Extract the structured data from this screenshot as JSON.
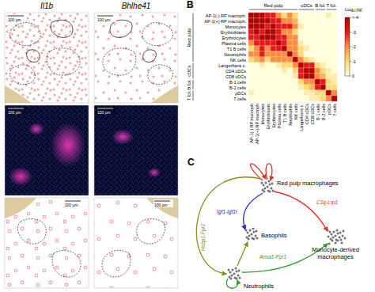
{
  "panel_A": {
    "columns": [
      {
        "gene": "Il1b",
        "scale_bars": [
          "100 μm",
          "100 μm",
          "100 μm"
        ]
      },
      {
        "gene": "Bhlhe41",
        "scale_bars": [
          "100 μm",
          "100 μm",
          "100 μm"
        ]
      }
    ]
  },
  "panel_B": {
    "letter": "B"
  },
  "chart_data": {
    "type": "heatmap",
    "categories": [
      "AP-1(-) RP macroph",
      "AP-1(+) RP macroph",
      "Monocytes",
      "Erythroblasts",
      "Erythrocytes",
      "Plasma cells",
      "T1 B cells",
      "Neutrophils",
      "NK cells",
      "Langerhans c.",
      "CD4 cDCs",
      "CD8 cDCs",
      "B-1 cells",
      "B-2 cells",
      "pDCs",
      "T cells"
    ],
    "rows": [
      "AP-1(-) RP macroph.",
      "AP-1(+) RP macroph.",
      "Monocytes",
      "Erythroblasts",
      "Erythrocytes",
      "Plasma cells",
      "T1 B cells",
      "Neutrophils",
      "NK cells",
      "Langerhans c.",
      "CD4 cDCs",
      "CD8 cDCs",
      "B-1 cells",
      "B-2 cells",
      "pDCs",
      "T cells"
    ],
    "cells": [
      [
        -4,
        -4,
        -4,
        -3,
        -3,
        -2,
        -1,
        -2,
        -1,
        0,
        0,
        0,
        0,
        0,
        -0.5,
        0
      ],
      [
        -4,
        -4,
        -4,
        -4,
        -3,
        -3,
        -2,
        -2,
        -1.5,
        0,
        0,
        0,
        0,
        0,
        0,
        0
      ],
      [
        -4,
        -4,
        -4,
        -3,
        -4,
        -3,
        -3,
        -3,
        -2,
        -0.5,
        0,
        0,
        0,
        0,
        0,
        0
      ],
      [
        -3,
        -4,
        -3,
        -4,
        -4,
        -3,
        -2,
        -2,
        -1,
        0,
        0,
        0,
        0,
        0,
        0,
        0
      ],
      [
        -3,
        -3,
        -4,
        -4,
        -4,
        -3,
        -3,
        -2,
        -2,
        0,
        0,
        0,
        0,
        0,
        0,
        0
      ],
      [
        -2,
        -3,
        -3,
        -3,
        -3,
        -4,
        -3,
        -2,
        -2,
        -0.5,
        0,
        0,
        0,
        0,
        0,
        0
      ],
      [
        -1,
        -2,
        -3,
        -2,
        -3,
        -3,
        -4,
        -2,
        -2,
        -1,
        -0.5,
        0,
        0,
        0,
        0,
        0
      ],
      [
        -2,
        -2,
        -3,
        -2,
        -2,
        -2,
        -2,
        -4,
        -2,
        -1,
        0,
        0,
        0,
        0,
        0,
        0
      ],
      [
        -1,
        -1.5,
        -2,
        -1,
        -2,
        -2,
        -2,
        -2,
        -4,
        -2,
        -1,
        -0.5,
        0,
        0,
        0,
        0
      ],
      [
        0,
        0,
        -0.5,
        0,
        0,
        -0.5,
        -1,
        -1,
        -2,
        -4,
        -3,
        -3,
        -1,
        -0.5,
        0,
        0
      ],
      [
        0,
        0,
        0,
        0,
        0,
        0,
        -0.5,
        0,
        -1,
        -3,
        -4,
        -4,
        -2,
        -1,
        -0.5,
        0
      ],
      [
        0,
        0,
        0,
        0,
        0,
        0,
        0,
        0,
        -0.5,
        -3,
        -4,
        -4,
        -2,
        -1.5,
        -0.5,
        -0.5
      ],
      [
        0,
        0,
        0,
        0,
        0,
        0,
        0,
        0,
        0,
        -1,
        -2,
        -2,
        -4,
        -3,
        -1,
        -0.5
      ],
      [
        0,
        0,
        0,
        0,
        0,
        0,
        0,
        0,
        0,
        -0.5,
        -1,
        -1.5,
        -3,
        -4,
        -1,
        -1
      ],
      [
        -0.5,
        0,
        0,
        0,
        0,
        0,
        0,
        0,
        0,
        0,
        -0.5,
        -0.5,
        -1,
        -1,
        -4,
        -2
      ],
      [
        0,
        0,
        0,
        0,
        0,
        0,
        0,
        0,
        0,
        0,
        0,
        -0.5,
        -0.5,
        -1,
        -2,
        -4
      ]
    ],
    "colorbar": {
      "title": "Log₁₀(q)",
      "range": [
        -4,
        0
      ],
      "ticks": [
        {
          "value": -4,
          "label": "<-4"
        },
        -3,
        -2,
        -1,
        0
      ]
    },
    "column_groups": [
      {
        "label": "Red pulp",
        "first": "AP-1(-) RP macroph",
        "last": "NK cells"
      },
      {
        "label": "cDCs",
        "first": "Langerhans c.",
        "last": "CD8 cDCs"
      },
      {
        "label": "B fol.",
        "first": "B-1 cells",
        "last": "B-2 cells"
      },
      {
        "label": "T fol.",
        "first": "pDCs",
        "last": "T cells"
      }
    ],
    "row_groups": [
      {
        "label": "Red pulp",
        "first": "AP-1(-) RP macroph.",
        "last": "NK cells"
      },
      {
        "label": "cDCs",
        "first": "Langerhans c.",
        "last": "CD8 cDCs"
      },
      {
        "label": "B fol.",
        "first": "B-1 cells",
        "last": "B-2 cells"
      },
      {
        "label": "T fol.",
        "first": "pDCs",
        "last": "T cells"
      }
    ]
  },
  "panel_C": {
    "letter": "C",
    "nodes": [
      "Red pulp macrophages",
      "Monocyte-derived macrophages",
      "Basophils",
      "Neutrophils"
    ],
    "edges": [
      {
        "from": "Red pulp macrophages",
        "to": "Red pulp macrophages",
        "color": "#e8302a"
      },
      {
        "from": "Red pulp macrophages",
        "to": "Red pulp macrophages",
        "color": "#e8302a"
      },
      {
        "label": "C1q-Lrp1",
        "from": "Red pulp macrophages",
        "to": "Monocyte-derived macrophages",
        "color": "#e8302a"
      },
      {
        "label": "Igf1-Igf1r",
        "from": "Red pulp macrophages",
        "to": "Basophils",
        "color": "#2a2ad0"
      },
      {
        "label": "Hebp1-Fpr2",
        "from": "Red pulp macrophages",
        "to": "Neutrophils",
        "color": "#8c8c1e"
      },
      {
        "from": "Neutrophils",
        "to": "Basophils",
        "color": "#8c8c1e"
      },
      {
        "label": "Anxa1-Fpr1",
        "from": "Neutrophils",
        "to": "Monocyte-derived macrophages",
        "color": "#2e9e2e"
      },
      {
        "from": "Neutrophils",
        "to": "Neutrophils",
        "color": "#2e9e2e"
      }
    ]
  }
}
